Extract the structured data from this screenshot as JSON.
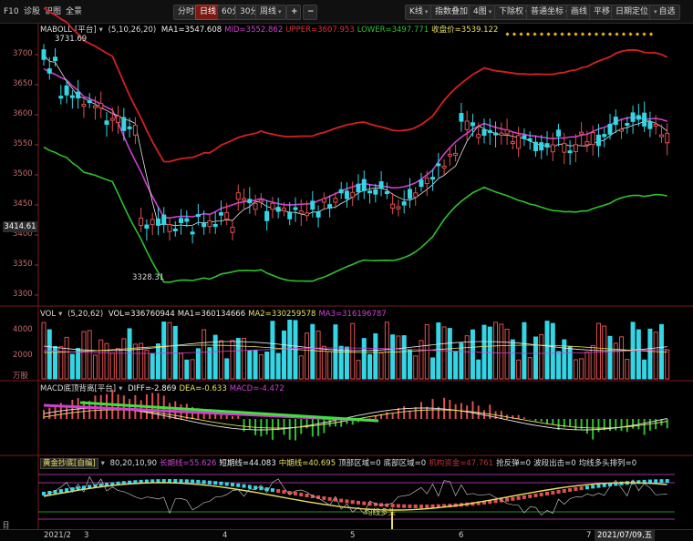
{
  "toolbar": {
    "left_items": [
      "F10",
      "诊股",
      "识图",
      "全景"
    ],
    "period_buttons": [
      "分时",
      "日线",
      "60分",
      "30分",
      "周线"
    ],
    "period_active": "日线",
    "plus": "+",
    "minus": "−",
    "right_buttons": [
      {
        "label": "K线",
        "caret": true
      },
      {
        "label": "指数叠加",
        "caret": false
      },
      {
        "label": "4图",
        "caret": true
      },
      {
        "label": "下除权",
        "caret": true
      },
      {
        "label": "普通坐标",
        "caret": true
      },
      {
        "label": "画线",
        "caret": false
      },
      {
        "label": "平移",
        "caret": false
      },
      {
        "label": "日期定位",
        "caret": false
      },
      {
        "label": "自选",
        "caret": true
      }
    ]
  },
  "main_pane": {
    "title": "MABOLL",
    "mode": "[平台]",
    "params": "(5,10,26,20)",
    "ma1": "MA1=3547.608",
    "mid": "MID=3552.862",
    "upper": "UPPER=3607.953",
    "lower": "LOWER=3497.771",
    "close": "收盘价=3539.122",
    "y_ticks": [
      "3700",
      "3650",
      "3600",
      "3550",
      "3500",
      "3450",
      "3400",
      "3350",
      "3300"
    ],
    "price_tag": "3414.61",
    "high_label": "3731.69",
    "low_label": "3328.31"
  },
  "vol_pane": {
    "title": "VOL",
    "params": "(5,20,62)",
    "vol": "VOL=336760944",
    "ma1": "MA1=360134666",
    "ma2": "MA2=330259578",
    "ma3": "MA3=316196787",
    "y_ticks": [
      "4000",
      "2000"
    ],
    "unit": "万股"
  },
  "macd_pane": {
    "title": "MACD底顶背离[平台]",
    "diff": "DIFF=-2.869",
    "dea": "DEA=-0.633",
    "macd": "MACD=-4.472"
  },
  "gold_pane": {
    "title": "黄金抄底[自编]",
    "params": "80,20,10,90",
    "long": "长期线=55.626",
    "short": "短期线=44.083",
    "mid": "中期线=40.695",
    "top": "顶部区域=0",
    "bottom": "底部区域=0",
    "funds": "机构资金=47.761",
    "rebound": "抢反弹=0",
    "band": "波段出击=0",
    "ma_bull": "均线多头排列=0",
    "annotation": "均线多头"
  },
  "side_tab": "日线",
  "date_axis": {
    "labels": [
      "2021/2",
      "3",
      "4",
      "5",
      "6",
      "7"
    ],
    "current_date": "2021/07/09,五"
  },
  "colors": {
    "up": "#e05050",
    "down": "#34d6e6",
    "upper_band": "#d42020",
    "mid_band": "#d040d0",
    "lower_band": "#30c030",
    "ma": "#e8e8e8"
  }
}
